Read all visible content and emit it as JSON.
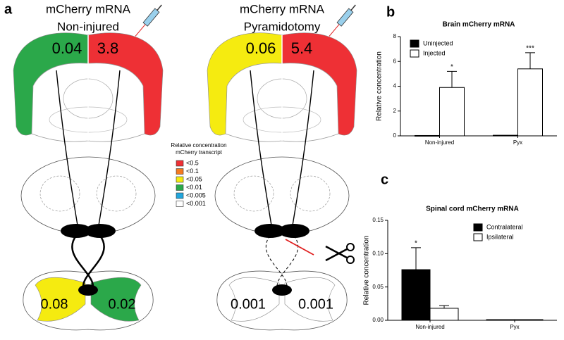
{
  "panel_a": {
    "label": "a",
    "brains": [
      {
        "title": [
          "mCherry mRNA",
          "Non-injured"
        ],
        "left": "0.04",
        "right": "3.8",
        "left_color": "#2ba84a",
        "right_color": "#ee3035",
        "cord_left": "0.08",
        "cord_right": "0.02",
        "cord_left_color": "#f5eb10",
        "cord_right_color": "#2ba84a",
        "lesion": false
      },
      {
        "title": [
          "mCherry mRNA",
          "Pyramidotomy"
        ],
        "left": "0.06",
        "right": "5.4",
        "left_color": "#f5eb10",
        "right_color": "#ee3035",
        "cord_left": "0.001",
        "cord_right": "0.001",
        "cord_left_color": "#ffffff",
        "cord_right_color": "#ffffff",
        "lesion": true
      }
    ],
    "legend": {
      "title": [
        "Relative concentration",
        "mCherry transcript"
      ],
      "items": [
        {
          "label": "<0.5",
          "color": "#ee3035"
        },
        {
          "label": "<0.1",
          "color": "#f47a20"
        },
        {
          "label": "<0.05",
          "color": "#f5eb10"
        },
        {
          "label": "<0.01",
          "color": "#2ba84a"
        },
        {
          "label": "<0.005",
          "color": "#21a6dd"
        },
        {
          "label": "<0.001",
          "color": "#ffffff"
        }
      ]
    }
  },
  "chart_data": [
    {
      "type": "bar",
      "panel": "b",
      "title": "Brain mCherry mRNA",
      "y_label": "Relative concentration",
      "categories": [
        "Non-injured",
        "Pyx"
      ],
      "series": [
        {
          "name": "Uninjected",
          "color": "#000000",
          "values": [
            0.03,
            0.05
          ],
          "errors": [
            0,
            0
          ]
        },
        {
          "name": "Injected",
          "color": "#ffffff",
          "values": [
            3.9,
            5.4
          ],
          "errors": [
            1.3,
            1.3
          ],
          "annotations": [
            "*",
            "***"
          ]
        }
      ],
      "ylim": [
        0,
        8
      ],
      "yticks": [
        0,
        2,
        4,
        6,
        8
      ],
      "legend": "top-left"
    },
    {
      "type": "bar",
      "panel": "c",
      "title": "Spinal cord mCherry mRNA",
      "y_label": "Relative concentration",
      "categories": [
        "Non-injured",
        "Pyx"
      ],
      "series": [
        {
          "name": "Contralateral",
          "color": "#000000",
          "values": [
            0.076,
            0.001
          ],
          "errors": [
            0.033,
            0
          ],
          "annotations": [
            "*",
            null
          ]
        },
        {
          "name": "Ipsilateral",
          "color": "#ffffff",
          "values": [
            0.018,
            0.001
          ],
          "errors": [
            0.004,
            0
          ]
        }
      ],
      "ylim": [
        0,
        0.15
      ],
      "yticks": [
        {
          "value": 0,
          "label": "0.00"
        },
        {
          "value": 0.05,
          "label": "0.05"
        },
        {
          "value": 0.1,
          "label": "0.10"
        },
        {
          "value": 0.15,
          "label": "0.15"
        }
      ],
      "legend": "top-right"
    }
  ]
}
